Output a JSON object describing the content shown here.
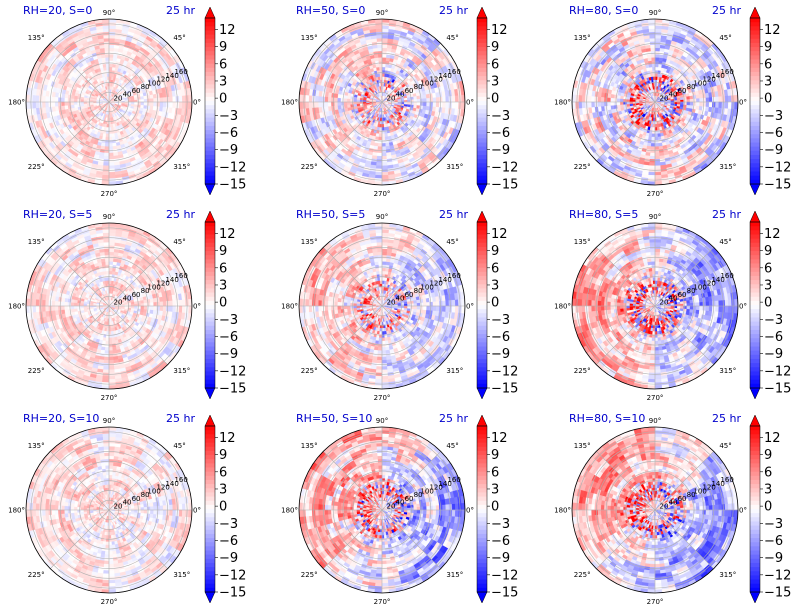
{
  "chart_data": {
    "type": "heatmap",
    "layout": "3x3 grid of polar plots with individual colorbars",
    "colormap": "bwr",
    "theta_tick_labels": [
      "0°",
      "45°",
      "90°",
      "135°",
      "180°",
      "225°",
      "270°",
      "315°"
    ],
    "r_tick_labels": [
      "20",
      "40",
      "60",
      "80",
      "100",
      "120",
      "140",
      "160"
    ],
    "r_range": [
      0,
      170
    ],
    "colorbar": {
      "ticks": [
        "12",
        "9",
        "6",
        "3",
        "0",
        "−3",
        "−6",
        "−9",
        "−12",
        "−15"
      ],
      "range": [
        -15,
        14
      ],
      "extend": "both",
      "colors": {
        "max": "#ff0000",
        "mid": "#ffffff",
        "min": "#0000ff"
      }
    },
    "panels": [
      {
        "title": "RH=20, S=0",
        "time": "25 hr",
        "pattern": {
          "amp": 0.22,
          "bias": 0.08,
          "core": 0.0,
          "coreSign": 1,
          "dipole": 0.0,
          "dipoleAngle": 0
        }
      },
      {
        "title": "RH=50, S=0",
        "time": "25 hr",
        "pattern": {
          "amp": 0.32,
          "bias": 0.0,
          "core": 0.55,
          "coreSign": 1,
          "dipole": 0.06,
          "dipoleAngle": 180
        }
      },
      {
        "title": "RH=80, S=0",
        "time": "25 hr",
        "pattern": {
          "amp": 0.38,
          "bias": -0.02,
          "core": 0.85,
          "coreSign": 1,
          "dipole": 0.12,
          "dipoleAngle": 210
        }
      },
      {
        "title": "RH=20, S=5",
        "time": "25 hr",
        "pattern": {
          "amp": 0.22,
          "bias": 0.08,
          "core": 0.0,
          "coreSign": 1,
          "dipole": 0.03,
          "dipoleAngle": 180
        }
      },
      {
        "title": "RH=50, S=5",
        "time": "25 hr",
        "pattern": {
          "amp": 0.3,
          "bias": 0.02,
          "core": 0.55,
          "coreSign": 1,
          "dipole": 0.22,
          "dipoleAngle": 180
        }
      },
      {
        "title": "RH=80, S=5",
        "time": "25 hr",
        "pattern": {
          "amp": 0.32,
          "bias": 0.0,
          "core": 0.85,
          "coreSign": 1,
          "dipole": 0.42,
          "dipoleAngle": 180
        }
      },
      {
        "title": "RH=20, S=10",
        "time": "25 hr",
        "pattern": {
          "amp": 0.22,
          "bias": 0.08,
          "core": 0.0,
          "coreSign": 1,
          "dipole": 0.06,
          "dipoleAngle": 180
        }
      },
      {
        "title": "RH=50, S=10",
        "time": "25 hr",
        "pattern": {
          "amp": 0.35,
          "bias": 0.0,
          "core": 0.75,
          "coreSign": 1,
          "dipole": 0.38,
          "dipoleAngle": 160
        }
      },
      {
        "title": "RH=80, S=10",
        "time": "25 hr",
        "pattern": {
          "amp": 0.33,
          "bias": 0.0,
          "core": 0.85,
          "coreSign": 1,
          "dipole": 0.45,
          "dipoleAngle": 150
        }
      }
    ]
  }
}
